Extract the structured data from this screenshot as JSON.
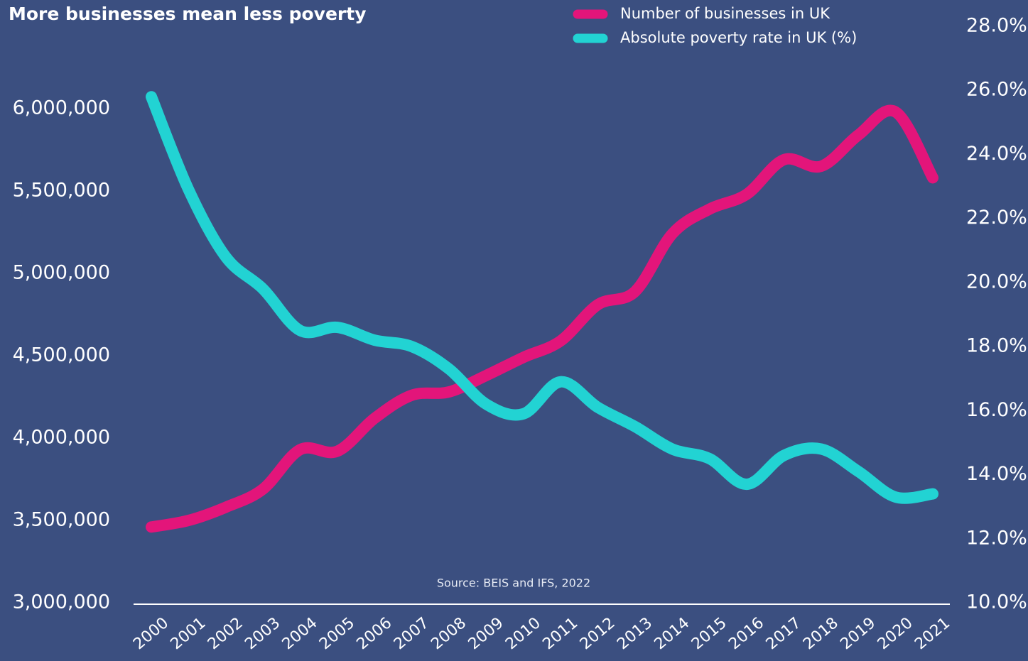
{
  "chart_data": {
    "type": "line",
    "title": "More businesses mean less poverty",
    "annotation": "Source: BEIS and IFS, 2022",
    "categories": [
      "2000",
      "2001",
      "2002",
      "2003",
      "2004",
      "2005",
      "2006",
      "2007",
      "2008",
      "2009",
      "2010",
      "2011",
      "2012",
      "2013",
      "2014",
      "2015",
      "2016",
      "2017",
      "2018",
      "2019",
      "2020",
      "2021"
    ],
    "series": [
      {
        "name": "Number of businesses in UK",
        "color": "#e3157a",
        "axis": "y",
        "values": [
          3460000,
          3500000,
          3580000,
          3690000,
          3930000,
          3920000,
          4120000,
          4260000,
          4280000,
          4380000,
          4490000,
          4590000,
          4810000,
          4890000,
          5240000,
          5390000,
          5480000,
          5690000,
          5650000,
          5840000,
          5980000,
          5580000
        ]
      },
      {
        "name": "Absolute poverty rate in UK (%)",
        "color": "#22d3d3",
        "axis": "y2",
        "values": [
          25.8,
          22.9,
          20.8,
          19.8,
          18.5,
          18.6,
          18.2,
          18.0,
          17.3,
          16.2,
          15.9,
          16.9,
          16.1,
          15.5,
          14.8,
          14.5,
          13.7,
          14.6,
          14.8,
          14.1,
          13.3,
          13.4
        ]
      }
    ],
    "ylim": [
      3000000,
      6500000
    ],
    "yticks": [
      {
        "value": 3000000,
        "label": "3,000,000"
      },
      {
        "value": 3500000,
        "label": "3,500,000"
      },
      {
        "value": 4000000,
        "label": "4,000,000"
      },
      {
        "value": 4500000,
        "label": "4,500,000"
      },
      {
        "value": 5000000,
        "label": "5,000,000"
      },
      {
        "value": 5500000,
        "label": "5,500,000"
      },
      {
        "value": 6000000,
        "label": "6,000,000"
      }
    ],
    "y2lim": [
      10,
      28
    ],
    "y2ticks": [
      {
        "value": 10,
        "label": "10.0%"
      },
      {
        "value": 12,
        "label": "12.0%"
      },
      {
        "value": 14,
        "label": "14.0%"
      },
      {
        "value": 16,
        "label": "16.0%"
      },
      {
        "value": 18,
        "label": "18.0%"
      },
      {
        "value": 20,
        "label": "20.0%"
      },
      {
        "value": 22,
        "label": "22.0%"
      },
      {
        "value": 24,
        "label": "24.0%"
      },
      {
        "value": 26,
        "label": "26.0%"
      },
      {
        "value": 28,
        "label": "28.0%"
      }
    ],
    "legend": "top-right",
    "grid": false
  }
}
